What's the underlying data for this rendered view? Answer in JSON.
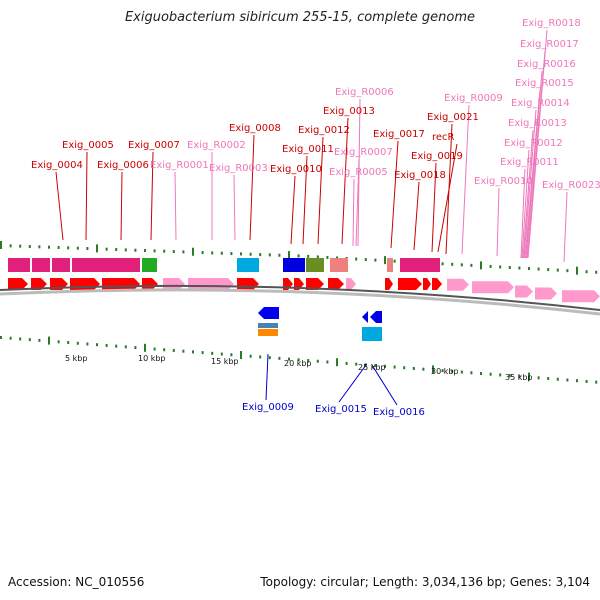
{
  "title": "Exiguobacterium sibiricum 255-15, complete genome",
  "footer": {
    "accession": "Accession: NC_010556",
    "summary": "Topology: circular; Length: 3,034,136 bp; Genes: 3,104"
  },
  "colors": {
    "cds": "#ff0000",
    "rna": "#ff99cc",
    "reverse_cds": "#0000ee",
    "label_red": "#cc0000",
    "label_pink": "#ee77bb",
    "label_blue": "#0000cc",
    "backbone": "#888888",
    "tick": "#2a7a2a"
  },
  "scale": {
    "labels": [
      "5 kbp",
      "10 kbp",
      "15 kbp",
      "20 kbp",
      "25 kbp",
      "30 kbp",
      "35 kbp"
    ]
  },
  "gene_labels_forward": [
    "Exig_0004",
    "Exig_0005",
    "Exig_0006",
    "Exig_0007",
    "Exig_R0001",
    "Exig_R0002",
    "Exig_R0003",
    "Exig_0008",
    "Exig_0010",
    "Exig_0011",
    "Exig_0012",
    "Exig_0013",
    "Exig_R0005",
    "Exig_R0007",
    "Exig_R0006",
    "Exig_0017",
    "Exig_0018",
    "Exig_0019",
    "recR",
    "Exig_0021",
    "Exig_R0009",
    "Exig_R0010",
    "Exig_R0011",
    "Exig_R0012",
    "Exig_R0013",
    "Exig_R0014",
    "Exig_R0015",
    "Exig_R0016",
    "Exig_R0017",
    "Exig_R0018",
    "Exig_R0023"
  ],
  "gene_labels_reverse": [
    "Exig_0009",
    "Exig_0015",
    "Exig_0016"
  ]
}
